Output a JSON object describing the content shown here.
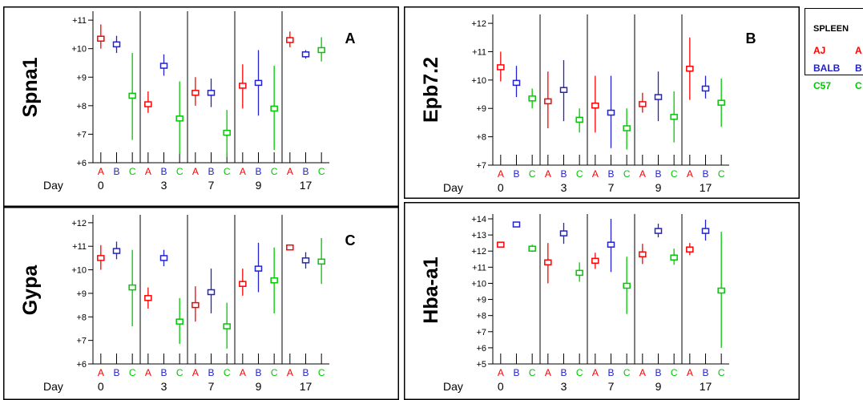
{
  "legend": {
    "title": "SPLEEN",
    "entries": [
      {
        "label": "AJ",
        "code": "A",
        "color": "#ff0000"
      },
      {
        "label": "BALB",
        "code": "B",
        "color": "#2222cc"
      },
      {
        "label": "C57",
        "code": "C",
        "color": "#00c800"
      }
    ]
  },
  "day_label": "Day",
  "strain_labels": [
    "A",
    "B",
    "C"
  ],
  "colors": {
    "A": "#ff0000",
    "B": "#2222cc",
    "C": "#00c800"
  },
  "chart_data": [
    {
      "type": "errorbar",
      "gene": "Spna1",
      "panel_letter": "A",
      "days": [
        "0",
        "3",
        "7",
        "9",
        "17"
      ],
      "yticks": [
        "+6",
        "+7",
        "+8",
        "+9",
        "+10",
        "+11"
      ],
      "ylim": [
        6,
        11.2
      ],
      "series": [
        {
          "name": "A",
          "mean": [
            10.35,
            8.05,
            8.45,
            8.7,
            10.3
          ],
          "low": [
            10.0,
            7.75,
            8.0,
            7.9,
            10.05
          ],
          "high": [
            10.85,
            8.5,
            9.0,
            9.45,
            10.6
          ]
        },
        {
          "name": "B",
          "mean": [
            10.15,
            9.4,
            8.45,
            8.8,
            9.8
          ],
          "low": [
            9.85,
            9.05,
            7.95,
            7.65,
            9.65
          ],
          "high": [
            10.45,
            9.8,
            8.95,
            9.95,
            9.95
          ]
        },
        {
          "name": "C",
          "mean": [
            8.35,
            7.55,
            7.05,
            7.9,
            9.95
          ],
          "low": [
            6.8,
            6.3,
            6.2,
            6.45,
            9.55
          ],
          "high": [
            9.85,
            8.85,
            7.85,
            9.4,
            10.4
          ]
        }
      ]
    },
    {
      "type": "errorbar",
      "gene": "Epb7.2",
      "panel_letter": "B",
      "days": [
        "0",
        "3",
        "7",
        "9",
        "17"
      ],
      "yticks": [
        "+7",
        "+8",
        "+9",
        "+10",
        "+11",
        "+12"
      ],
      "ylim": [
        7,
        12.2
      ],
      "series": [
        {
          "name": "A",
          "mean": [
            10.45,
            9.25,
            9.1,
            9.15,
            10.4
          ],
          "low": [
            9.95,
            8.3,
            8.15,
            8.85,
            9.3
          ],
          "high": [
            11.0,
            10.3,
            10.15,
            9.55,
            11.5
          ]
        },
        {
          "name": "B",
          "mean": [
            9.9,
            9.65,
            8.85,
            9.4,
            9.7
          ],
          "low": [
            9.4,
            8.55,
            7.6,
            8.55,
            9.35
          ],
          "high": [
            10.5,
            10.7,
            10.15,
            10.3,
            10.15
          ]
        },
        {
          "name": "C",
          "mean": [
            9.35,
            8.6,
            8.3,
            8.7,
            9.2
          ],
          "low": [
            9.0,
            8.15,
            7.55,
            7.8,
            8.35
          ],
          "high": [
            9.7,
            9.0,
            9.0,
            9.6,
            10.05
          ]
        }
      ]
    },
    {
      "type": "errorbar",
      "gene": "Gypa",
      "panel_letter": "C",
      "days": [
        "0",
        "3",
        "7",
        "9",
        "17"
      ],
      "yticks": [
        "+6",
        "+7",
        "+8",
        "+9",
        "+10",
        "+11",
        "+12"
      ],
      "ylim": [
        6,
        12.2
      ],
      "series": [
        {
          "name": "A",
          "mean": [
            10.5,
            8.8,
            8.5,
            9.4,
            10.95
          ],
          "low": [
            10.0,
            8.35,
            7.8,
            8.9,
            10.85
          ],
          "high": [
            11.05,
            9.25,
            9.3,
            10.05,
            11.05
          ]
        },
        {
          "name": "B",
          "mean": [
            10.8,
            10.5,
            9.05,
            10.05,
            10.4
          ],
          "low": [
            10.45,
            10.15,
            8.15,
            9.05,
            10.05
          ],
          "high": [
            11.2,
            10.85,
            10.05,
            11.15,
            10.75
          ]
        },
        {
          "name": "C",
          "mean": [
            9.25,
            7.8,
            7.6,
            9.55,
            10.35
          ],
          "low": [
            7.6,
            6.85,
            6.65,
            8.15,
            9.4
          ],
          "high": [
            10.85,
            8.8,
            8.6,
            10.95,
            11.35
          ]
        }
      ]
    },
    {
      "type": "errorbar",
      "gene": "Hba-a1",
      "panel_letter": "",
      "days": [
        "0",
        "3",
        "7",
        "9",
        "17"
      ],
      "yticks": [
        "+5",
        "+6",
        "+7",
        "+8",
        "+9",
        "+10",
        "+11",
        "+12",
        "+13",
        "+14"
      ],
      "ylim": [
        5,
        14.1
      ],
      "series": [
        {
          "name": "A",
          "mean": [
            12.4,
            11.3,
            11.4,
            11.8,
            12.1
          ],
          "low": [
            12.25,
            10.0,
            10.9,
            11.2,
            11.75
          ],
          "high": [
            12.55,
            12.5,
            11.9,
            12.45,
            12.5
          ]
        },
        {
          "name": "B",
          "mean": [
            13.65,
            13.1,
            12.4,
            13.25,
            13.25
          ],
          "low": [
            13.55,
            12.45,
            10.7,
            12.85,
            12.65
          ],
          "high": [
            13.75,
            13.75,
            14.0,
            13.7,
            13.95
          ]
        },
        {
          "name": "C",
          "mean": [
            12.15,
            10.65,
            9.85,
            11.6,
            9.55
          ],
          "low": [
            11.95,
            10.1,
            8.1,
            11.15,
            6.0
          ],
          "high": [
            12.4,
            11.3,
            11.65,
            12.15,
            13.2
          ]
        }
      ]
    }
  ]
}
